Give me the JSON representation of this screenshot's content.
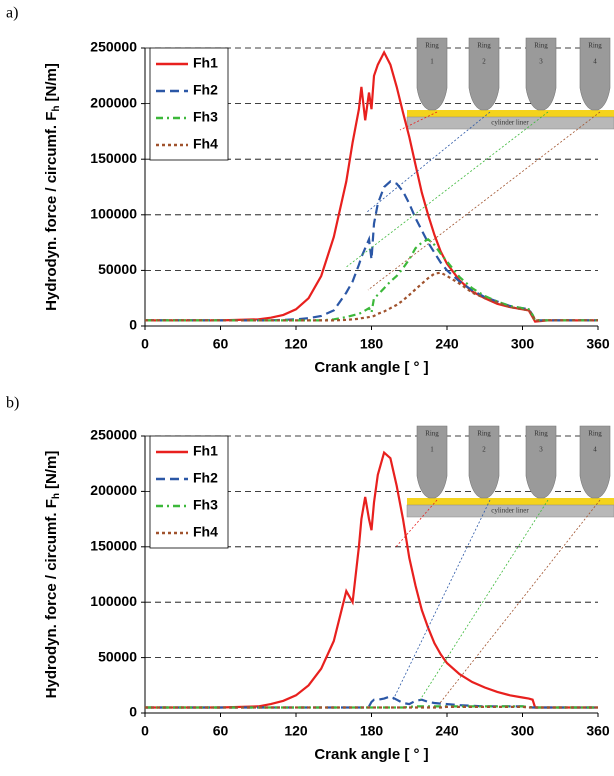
{
  "chart_data": [
    {
      "type": "line",
      "panel_label": "a)",
      "x_label": "Crank angle [ ° ]",
      "y_label": "Hydrodyn. force / circumf. F",
      "y_label_sub": "h",
      "y_label_unit": "[N/m]",
      "xlim": [
        0,
        360
      ],
      "xticks": [
        0,
        60,
        120,
        180,
        240,
        300,
        360
      ],
      "ylim": [
        0,
        250000
      ],
      "yticks": [
        0,
        50000,
        100000,
        150000,
        200000,
        250000
      ],
      "grid": true,
      "legend": "upper left",
      "x": [
        0,
        30,
        60,
        90,
        100,
        110,
        120,
        130,
        140,
        150,
        160,
        165,
        170,
        172,
        175,
        178,
        180,
        182,
        185,
        190,
        195,
        200,
        205,
        210,
        215,
        220,
        225,
        230,
        235,
        240,
        250,
        260,
        270,
        280,
        290,
        300,
        305,
        308,
        310,
        320,
        340,
        360
      ],
      "series": [
        {
          "name": "Fh1",
          "color": "#e8201e",
          "line_style": "solid",
          "values": [
            5000,
            5000,
            5000,
            6000,
            7500,
            10000,
            15000,
            25000,
            45000,
            80000,
            130000,
            165000,
            195000,
            215000,
            185000,
            210000,
            195000,
            225000,
            235000,
            246000,
            235000,
            215000,
            192000,
            170000,
            145000,
            120000,
            100000,
            82000,
            67000,
            56000,
            41000,
            31000,
            25000,
            20000,
            17000,
            15000,
            14000,
            8000,
            4000,
            5000,
            5000,
            5000
          ]
        },
        {
          "name": "Fh2",
          "color": "#2b57a6",
          "line_style": "dashed",
          "values": [
            5000,
            5000,
            5000,
            5000,
            5000,
            5500,
            6000,
            7000,
            9000,
            14000,
            30000,
            40000,
            55000,
            62000,
            70000,
            78000,
            60000,
            92000,
            110000,
            125000,
            130000,
            128000,
            121000,
            110000,
            97000,
            86000,
            75000,
            66000,
            57000,
            50000,
            40000,
            32000,
            26000,
            22000,
            18000,
            16000,
            15000,
            10000,
            5000,
            5000,
            5000,
            5000
          ]
        },
        {
          "name": "Fh3",
          "color": "#3cb83a",
          "line_style": "dashdot",
          "values": [
            5000,
            5000,
            5000,
            5000,
            5000,
            5000,
            5000,
            5000,
            5000,
            6000,
            8000,
            9500,
            11000,
            12000,
            14000,
            16000,
            12000,
            25000,
            28000,
            34000,
            40000,
            45000,
            52000,
            60000,
            70000,
            75000,
            78000,
            73000,
            65000,
            58000,
            44000,
            34000,
            27000,
            22000,
            18000,
            16000,
            15000,
            10000,
            5000,
            5000,
            5000,
            5000
          ]
        },
        {
          "name": "Fh4",
          "color": "#a0522d",
          "line_style": "dotted",
          "values": [
            5000,
            5000,
            5000,
            5000,
            5000,
            5000,
            5000,
            5000,
            5000,
            5000,
            5500,
            6000,
            6500,
            7000,
            7500,
            8000,
            8500,
            9000,
            11000,
            13000,
            16000,
            19000,
            23000,
            28000,
            33000,
            38000,
            43000,
            47000,
            48000,
            45000,
            38000,
            30000,
            25000,
            21000,
            17000,
            15000,
            14000,
            10000,
            5000,
            5000,
            5000,
            5000
          ]
        }
      ],
      "inset": {
        "ring_label": "Ring",
        "ring_numbers": [
          "1",
          "2",
          "3",
          "4"
        ],
        "liner": "cylinder liner"
      }
    },
    {
      "type": "line",
      "panel_label": "b)",
      "x_label": "Crank angle [ ° ]",
      "y_label": "Hydrodyn. force / circumf. F",
      "y_label_sub": "h",
      "y_label_unit": "[N/m]",
      "xlim": [
        0,
        360
      ],
      "xticks": [
        0,
        60,
        120,
        180,
        240,
        300,
        360
      ],
      "ylim": [
        0,
        250000
      ],
      "yticks": [
        0,
        50000,
        100000,
        150000,
        200000,
        250000
      ],
      "grid": true,
      "legend": "upper left",
      "x": [
        0,
        30,
        60,
        90,
        100,
        110,
        120,
        130,
        140,
        150,
        160,
        165,
        170,
        172,
        175,
        178,
        180,
        182,
        185,
        190,
        195,
        200,
        205,
        210,
        215,
        220,
        225,
        230,
        235,
        240,
        250,
        260,
        270,
        280,
        290,
        300,
        305,
        308,
        310,
        320,
        340,
        360
      ],
      "series": [
        {
          "name": "Fh1",
          "color": "#e8201e",
          "line_style": "solid",
          "values": [
            5000,
            5000,
            5000,
            6000,
            8000,
            11000,
            16000,
            25000,
            40000,
            65000,
            110000,
            100000,
            150000,
            175000,
            195000,
            175000,
            165000,
            190000,
            215000,
            235000,
            230000,
            205000,
            175000,
            140000,
            115000,
            93000,
            77000,
            63000,
            53000,
            45000,
            35000,
            28000,
            23000,
            19000,
            16000,
            14000,
            13000,
            12000,
            5000,
            5000,
            5000,
            5000
          ]
        },
        {
          "name": "Fh2",
          "color": "#2b57a6",
          "line_style": "dashed",
          "values": [
            5000,
            5000,
            5000,
            5000,
            5000,
            5000,
            5000,
            5000,
            5000,
            5000,
            5000,
            5000,
            5000,
            5000,
            5000,
            6000,
            10000,
            12000,
            12000,
            13000,
            15000,
            12000,
            9000,
            8000,
            11000,
            12000,
            10000,
            9000,
            8500,
            8000,
            7000,
            6500,
            6000,
            6000,
            6000,
            6000,
            5500,
            5000,
            5000,
            5000,
            5000,
            5000
          ]
        },
        {
          "name": "Fh3",
          "color": "#3cb83a",
          "line_style": "dashdot",
          "values": [
            5000,
            5000,
            5000,
            5000,
            5000,
            5000,
            5000,
            5000,
            5000,
            5000,
            5000,
            5000,
            5000,
            5000,
            5000,
            5000,
            5000,
            5000,
            5000,
            5000,
            5000,
            5000,
            5000,
            5500,
            6000,
            6000,
            6000,
            6000,
            6000,
            6000,
            6000,
            6000,
            6000,
            6000,
            6000,
            6000,
            5500,
            5000,
            5000,
            5000,
            5000,
            5000
          ]
        },
        {
          "name": "Fh4",
          "color": "#a0522d",
          "line_style": "dotted",
          "values": [
            5000,
            5000,
            5000,
            5000,
            5000,
            5000,
            5000,
            5000,
            5000,
            5000,
            5000,
            5000,
            5000,
            5000,
            5000,
            5000,
            5000,
            5000,
            5000,
            5000,
            5000,
            5000,
            5000,
            5000,
            5000,
            5000,
            5000,
            5000,
            5000,
            5500,
            5500,
            5500,
            5500,
            5500,
            5500,
            5500,
            5000,
            5000,
            5000,
            5000,
            5000,
            5000
          ]
        }
      ],
      "inset": {
        "ring_label": "Ring",
        "ring_numbers": [
          "1",
          "2",
          "3",
          "4"
        ],
        "liner": "cylinder liner"
      }
    }
  ]
}
